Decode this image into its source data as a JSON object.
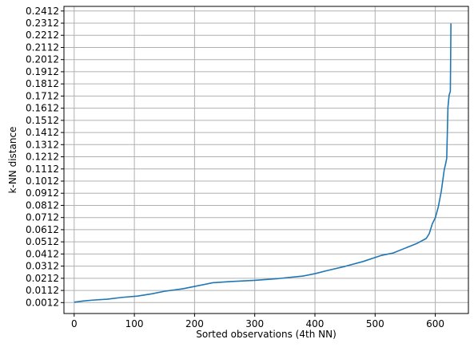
{
  "chart_data": {
    "type": "line",
    "title": "",
    "xlabel": "Sorted observations (4th NN)",
    "ylabel": "k-NN distance",
    "xlim": [
      -17,
      655
    ],
    "ylim": [
      -0.0078,
      0.245
    ],
    "grid": true,
    "x_ticks": [
      0,
      100,
      200,
      300,
      400,
      500,
      600
    ],
    "x_tick_labels": [
      "0",
      "100",
      "200",
      "300",
      "400",
      "500",
      "600"
    ],
    "y_ticks": [
      0.0012,
      0.0112,
      0.0212,
      0.0312,
      0.0412,
      0.0512,
      0.0612,
      0.0712,
      0.0812,
      0.0912,
      0.1012,
      0.1112,
      0.1212,
      0.1312,
      0.1412,
      0.1512,
      0.1612,
      0.1712,
      0.1812,
      0.1912,
      0.2012,
      0.2112,
      0.2212,
      0.2312,
      0.2412
    ],
    "y_tick_labels": [
      "0.0012",
      "0.0112",
      "0.0212",
      "0.0312",
      "0.0412",
      "0.0512",
      "0.0612",
      "0.0712",
      "0.0812",
      "0.0912",
      "0.1012",
      "0.1112",
      "0.1212",
      "0.1312",
      "0.1412",
      "0.1512",
      "0.1612",
      "0.1712",
      "0.1812",
      "0.1912",
      "0.2012",
      "0.2112",
      "0.2212",
      "0.2312",
      "0.2412"
    ],
    "series": [
      {
        "name": "",
        "color": "#1f77b4",
        "x": [
          0,
          15,
          30,
          55,
          80,
          105,
          130,
          150,
          180,
          200,
          230,
          260,
          300,
          340,
          380,
          400,
          420,
          450,
          480,
          510,
          530,
          550,
          570,
          585,
          590,
          595,
          600,
          605,
          610,
          615,
          617,
          619,
          621,
          623,
          625,
          626
        ],
        "y": [
          0.0015,
          0.0025,
          0.0032,
          0.004,
          0.0055,
          0.0065,
          0.0085,
          0.0105,
          0.0125,
          0.0145,
          0.0175,
          0.0185,
          0.0195,
          0.021,
          0.023,
          0.025,
          0.0275,
          0.031,
          0.035,
          0.04,
          0.042,
          0.046,
          0.05,
          0.054,
          0.058,
          0.066,
          0.071,
          0.08,
          0.093,
          0.111,
          0.115,
          0.12,
          0.162,
          0.172,
          0.175,
          0.231
        ]
      }
    ]
  }
}
